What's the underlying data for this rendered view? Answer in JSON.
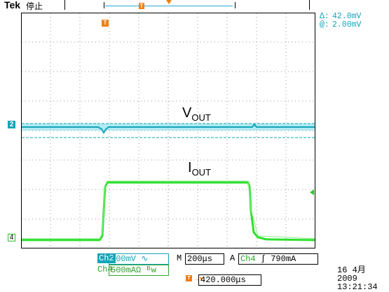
{
  "header": {
    "brand": "Tek",
    "run_status": "停止"
  },
  "cursor_readout": {
    "delta_label": "Δ:",
    "delta_value": "42.0mV",
    "at_label": "@:",
    "at_value": "2.00mV"
  },
  "channels": {
    "ch2": {
      "marker": "2",
      "name": "Ch2",
      "scale": "100mV",
      "coupling_symbol": "∿",
      "color": "#14a4b9"
    },
    "ch4": {
      "marker": "4",
      "name": "Ch4",
      "scale": "500mA",
      "coupling_symbol": "Ω ᴮw",
      "color": "#2fbf2f"
    }
  },
  "markers": {
    "trigger_time": "T"
  },
  "signal_labels": {
    "vout_main": "V",
    "vout_sub": "OUT",
    "iout_main": "I",
    "iout_sub": "OUT"
  },
  "status": {
    "m_label": "M",
    "timebase": "200μs",
    "a_label": "A",
    "trigger_source": "Ch4",
    "trigger_slope": "ʃ",
    "trigger_level": "790mA",
    "trigger_position": "420.000μs"
  },
  "date": {
    "line1": "16 4月  2009",
    "line2": "13:21:34"
  }
}
